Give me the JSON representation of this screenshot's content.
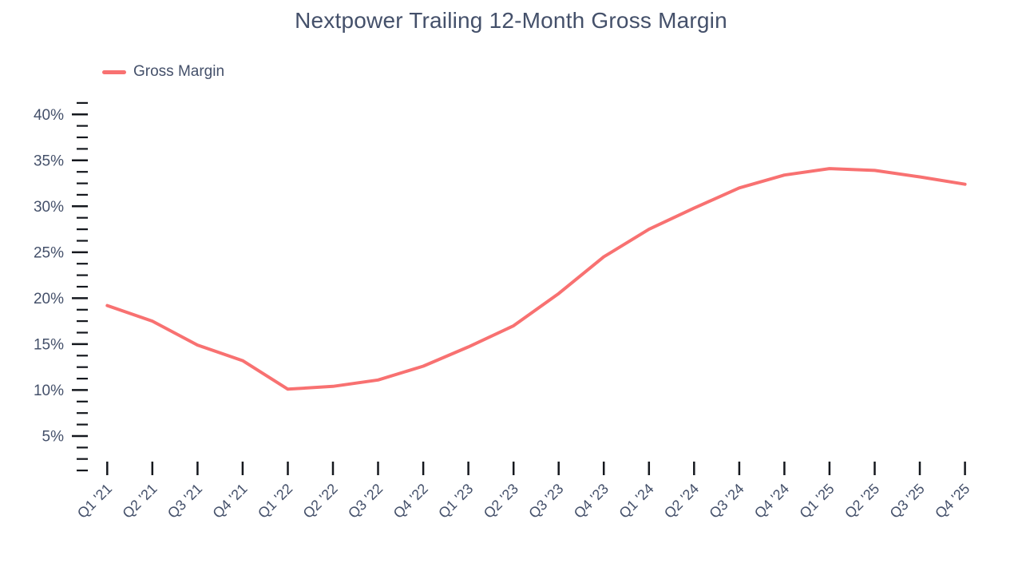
{
  "header": {
    "title": "Nextpower Trailing 12-Month Gross Margin"
  },
  "legend": {
    "label": "Gross Margin"
  },
  "colors": {
    "line": "#f87171",
    "text": "#44506a",
    "tick": "#15181e",
    "background": "#ffffff"
  },
  "chart_data": {
    "type": "line",
    "title": "Nextpower Trailing 12-Month Gross Margin",
    "categories": [
      "Q1 '21",
      "Q2 '21",
      "Q3 '21",
      "Q4 '21",
      "Q1 '22",
      "Q2 '22",
      "Q3 '22",
      "Q4 '22",
      "Q1 '23",
      "Q2 '23",
      "Q3 '23",
      "Q4 '23",
      "Q1 '24",
      "Q2 '24",
      "Q3 '24",
      "Q4 '24",
      "Q1 '25",
      "Q2 '25",
      "Q3 '25",
      "Q4 '25"
    ],
    "series": [
      {
        "name": "Gross Margin",
        "color": "#f87171",
        "values": [
          19.2,
          17.5,
          14.9,
          13.2,
          10.1,
          10.4,
          11.1,
          12.6,
          14.7,
          17.0,
          20.5,
          24.5,
          27.5,
          29.8,
          32.0,
          33.4,
          34.1,
          33.9,
          33.2,
          32.4
        ]
      }
    ],
    "xlabel": "",
    "ylabel": "",
    "y_unit": "%",
    "ylim": [
      0,
      42.5
    ],
    "y_major_ticks": [
      5,
      10,
      15,
      20,
      25,
      30,
      35,
      40
    ],
    "y_minor_tick_step": 1.25,
    "y_tick_labels": [
      "5%",
      "10%",
      "15%",
      "20%",
      "25%",
      "30%",
      "35%",
      "40%"
    ],
    "x_label_rotation": -45,
    "grid": false,
    "legend_position": "top-left"
  }
}
